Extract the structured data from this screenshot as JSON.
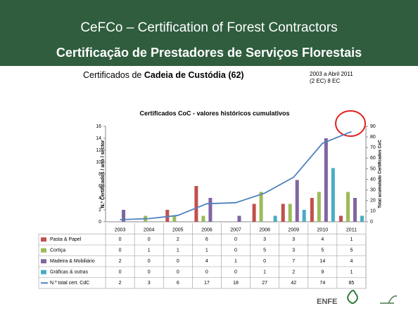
{
  "header": {
    "title": "CeFCo – Certification of Forest Contractors",
    "subtitle": "Certificação de Prestadores de Serviços Florestais"
  },
  "subheading": {
    "prefix": "Certificados de ",
    "bold": "Cadeia de Custódia (62)"
  },
  "period": [
    "2003 a Abril 2011",
    "(2 EC) 8 EC"
  ],
  "logos": [
    "ENFE"
  ],
  "chart_data": {
    "type": "bar",
    "title": "Certificados CoC - valores históricos cumulativos",
    "y_label": "N.º Certificados / ano / sector",
    "y2_label": "Total acumulado Certificados CoC",
    "categories": [
      "2003",
      "2004",
      "2005",
      "2006",
      "2007",
      "2008",
      "2009",
      "2010",
      "2011"
    ],
    "series": [
      {
        "name": "Pasta & Papel",
        "color": "#c0504d",
        "values": [
          0,
          0,
          2,
          6,
          0,
          3,
          3,
          4,
          1
        ]
      },
      {
        "name": "Cortiça",
        "color": "#9bbb59",
        "values": [
          0,
          1,
          1,
          1,
          0,
          5,
          3,
          5,
          5
        ]
      },
      {
        "name": "Madeira & Mobiliário",
        "color": "#8064a2",
        "values": [
          2,
          0,
          0,
          4,
          1,
          0,
          7,
          14,
          4
        ]
      },
      {
        "name": "Gráficas & outras",
        "color": "#4bacc6",
        "values": [
          0,
          0,
          0,
          0,
          0,
          1,
          2,
          9,
          1
        ]
      },
      {
        "name": "N.º total cert. CdC",
        "color": "#4f81bd",
        "type": "line",
        "axis": "y2",
        "values": [
          2,
          3,
          6,
          17,
          18,
          27,
          42,
          74,
          85
        ]
      }
    ],
    "ylim": [
      0,
      16
    ],
    "yticks": [
      0,
      2,
      4,
      6,
      8,
      10,
      12,
      14,
      16
    ],
    "y2lim": [
      0,
      90
    ],
    "y2ticks": [
      0,
      10,
      20,
      30,
      40,
      50,
      60,
      70,
      80,
      90
    ]
  }
}
